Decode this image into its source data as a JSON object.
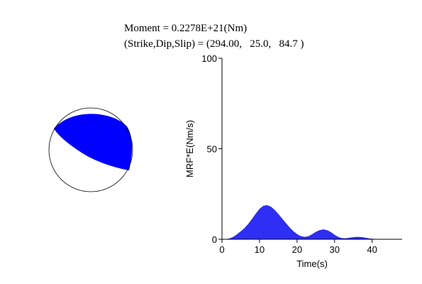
{
  "header": {
    "moment_line": "Moment = 0.2278E+21(Nm)",
    "mechanism_line": "(Strike,Dip,Slip) = (294.00,   25.0,   84.7 )"
  },
  "colors": {
    "fill": "#2e2ef5",
    "beachball_fill": "#0000ff"
  },
  "beachball": {
    "strike": 294.0,
    "dip": 25.0,
    "slip": 84.7
  },
  "chart_data": {
    "type": "area",
    "title": "",
    "xlabel": "Time(s)",
    "ylabel": "MRF*E(Nm/s)",
    "xlim": [
      0,
      48
    ],
    "ylim": [
      0,
      100
    ],
    "xticks": [
      0,
      10,
      20,
      30,
      40
    ],
    "yticks": [
      0,
      50,
      100
    ],
    "x": [
      0,
      1,
      2,
      3,
      4,
      5,
      6,
      7,
      8,
      9,
      10,
      11,
      12,
      13,
      14,
      15,
      16,
      17,
      18,
      19,
      20,
      21,
      22,
      23,
      24,
      25,
      26,
      27,
      28,
      29,
      30,
      31,
      32,
      33,
      34,
      35,
      36,
      37,
      38,
      39,
      40,
      41,
      42,
      43,
      44,
      45,
      46,
      47
    ],
    "values": [
      0,
      0,
      0.3,
      1.2,
      2.6,
      4.2,
      6.0,
      8.3,
      11.0,
      13.9,
      16.6,
      18.3,
      18.7,
      17.9,
      16.1,
      13.8,
      11.3,
      8.8,
      6.4,
      4.3,
      2.7,
      1.6,
      1.2,
      1.5,
      2.6,
      3.9,
      4.9,
      5.3,
      4.9,
      3.8,
      2.3,
      1.1,
      0.5,
      0.4,
      0.7,
      1.0,
      1.2,
      1.1,
      0.8,
      0.4,
      0.2,
      0.1,
      0.05,
      0,
      0,
      0,
      0,
      0
    ]
  }
}
